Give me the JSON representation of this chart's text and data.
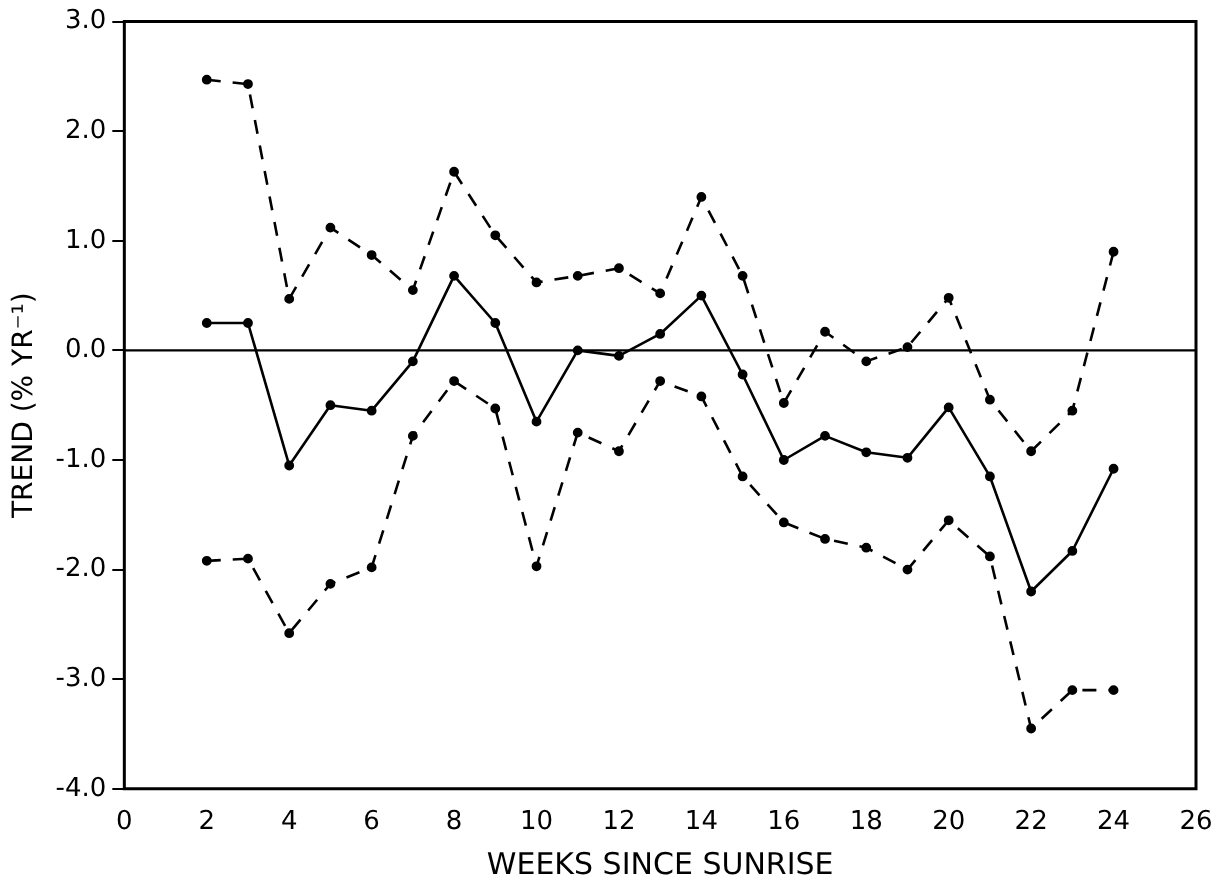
{
  "chart_data": {
    "type": "line",
    "xlabel": "WEEKS SINCE SUNRISE",
    "ylabel": "TREND (% YR⁻¹)",
    "x": [
      2,
      3,
      4,
      5,
      6,
      7,
      8,
      9,
      10,
      11,
      12,
      13,
      14,
      15,
      16,
      17,
      18,
      19,
      20,
      21,
      22,
      23,
      24
    ],
    "series": [
      {
        "color": "#000000",
        "line_style": "dashed",
        "values": [
          2.47,
          2.43,
          0.47,
          1.12,
          0.87,
          0.55,
          1.63,
          1.05,
          0.62,
          0.68,
          0.75,
          0.52,
          1.4,
          0.68,
          -0.48,
          0.17,
          -0.1,
          0.03,
          0.48,
          -0.45,
          -0.92,
          -0.55,
          0.9
        ]
      },
      {
        "color": "#000000",
        "line_style": "solid",
        "values": [
          0.25,
          0.25,
          -1.05,
          -0.5,
          -0.55,
          -0.1,
          0.68,
          0.25,
          -0.65,
          0,
          -0.05,
          0.15,
          0.5,
          -0.22,
          -1.0,
          -0.78,
          -0.93,
          -0.98,
          -0.52,
          -1.15,
          -2.2,
          -1.83,
          -1.08
        ]
      },
      {
        "color": "#000000",
        "line_style": "dashed",
        "values": [
          -1.92,
          -1.9,
          -2.58,
          -2.13,
          -1.98,
          -0.78,
          -0.28,
          -0.53,
          -1.97,
          -0.75,
          -0.92,
          -0.28,
          -0.42,
          -1.15,
          -1.57,
          -1.72,
          -1.8,
          -2.0,
          -1.55,
          -1.88,
          -3.45,
          -3.1,
          -3.1
        ]
      }
    ],
    "xlim": [
      0,
      26
    ],
    "xticks": [
      0,
      2,
      4,
      6,
      8,
      10,
      12,
      14,
      16,
      18,
      20,
      22,
      24,
      26
    ],
    "ylim": [
      -4,
      3
    ],
    "yticks": [
      {
        "value": -4,
        "label": "-4.0"
      },
      {
        "value": -3,
        "label": "-3.0"
      },
      {
        "value": -2,
        "label": "-2.0"
      },
      {
        "value": -1,
        "label": "-1.0"
      },
      {
        "value": 0,
        "label": "0.0"
      },
      {
        "value": 1,
        "label": "1.0"
      },
      {
        "value": 2,
        "label": "2.0"
      },
      {
        "value": 3,
        "label": "3.0"
      }
    ],
    "ref_lines": [
      {
        "axis": "y",
        "value": 0,
        "color": "#000000"
      }
    ],
    "marker": "circle",
    "grid": false,
    "legend": false
  }
}
